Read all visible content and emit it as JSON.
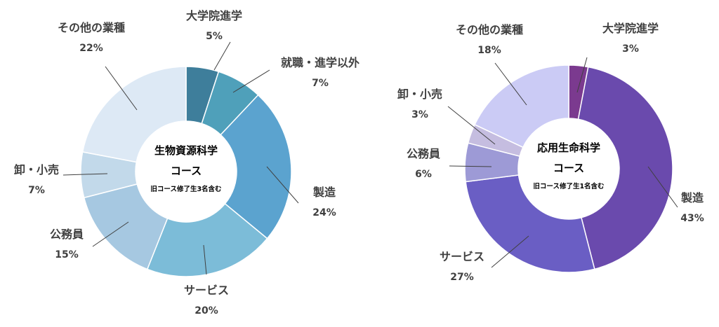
{
  "chart_data": [
    {
      "type": "pie",
      "donut": true,
      "center_title_line1": "生物資源科学",
      "center_title_line2": "コース",
      "center_note": "旧コース修了生3名含む",
      "slices": [
        {
          "label": "大学院進学",
          "value": 5,
          "value_label": "5%",
          "color": "#3e7e9b"
        },
        {
          "label": "就職・進学以外",
          "value": 7,
          "value_label": "7%",
          "color": "#4fa0ba"
        },
        {
          "label": "製造",
          "value": 24,
          "value_label": "24%",
          "color": "#5ba3cf"
        },
        {
          "label": "サービス",
          "value": 20,
          "value_label": "20%",
          "color": "#7cbcd8"
        },
        {
          "label": "公務員",
          "value": 15,
          "value_label": "15%",
          "color": "#a6c8e1"
        },
        {
          "label": "卸・小売",
          "value": 7,
          "value_label": "7%",
          "color": "#c2d9ea"
        },
        {
          "label": "その他の業種",
          "value": 22,
          "value_label": "22%",
          "color": "#dde9f5"
        }
      ]
    },
    {
      "type": "pie",
      "donut": true,
      "center_title_line1": "応用生命科学",
      "center_title_line2": "コース",
      "center_note": "旧コース修了生1名含む",
      "slices": [
        {
          "label": "大学院進学",
          "value": 3,
          "value_label": "3%",
          "color": "#7b3a8f"
        },
        {
          "label": "製造",
          "value": 43,
          "value_label": "43%",
          "color": "#6a4aad"
        },
        {
          "label": "サービス",
          "value": 27,
          "value_label": "27%",
          "color": "#6a5ec4"
        },
        {
          "label": "公務員",
          "value": 6,
          "value_label": "6%",
          "color": "#9d9ad6"
        },
        {
          "label": "卸・小売",
          "value": 3,
          "value_label": "3%",
          "color": "#c5bde0"
        },
        {
          "label": "その他の業種",
          "value": 18,
          "value_label": "18%",
          "color": "#cbcbf5"
        }
      ]
    }
  ]
}
